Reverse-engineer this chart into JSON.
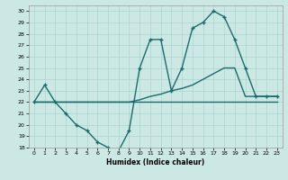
{
  "xlabel": "Humidex (Indice chaleur)",
  "bg_color": "#cce8e4",
  "grid_color": "#aad4d0",
  "line_color": "#1a6b6b",
  "xlim": [
    -0.5,
    23.5
  ],
  "ylim": [
    18,
    30.5
  ],
  "xticks": [
    0,
    1,
    2,
    3,
    4,
    5,
    6,
    7,
    8,
    9,
    10,
    11,
    12,
    13,
    14,
    15,
    16,
    17,
    18,
    19,
    20,
    21,
    22,
    23
  ],
  "yticks": [
    18,
    19,
    20,
    21,
    22,
    23,
    24,
    25,
    26,
    27,
    28,
    29,
    30
  ],
  "line1_x": [
    0,
    1,
    2,
    3,
    4,
    5,
    6,
    7,
    8,
    9,
    10,
    11,
    12,
    13,
    14,
    15,
    16,
    17,
    18,
    19,
    20,
    21,
    22,
    23
  ],
  "line1_y": [
    22,
    23.5,
    22,
    21,
    20,
    19.5,
    18.5,
    18,
    17.7,
    19.5,
    25,
    27.5,
    27.5,
    23,
    25,
    28.5,
    29,
    30,
    29.5,
    27.5,
    25,
    22.5,
    22.5,
    22.5
  ],
  "line2_x": [
    0,
    1,
    2,
    3,
    4,
    5,
    6,
    7,
    8,
    9,
    10,
    11,
    12,
    13,
    14,
    15,
    16,
    17,
    18,
    19,
    20,
    21,
    22,
    23
  ],
  "line2_y": [
    22,
    22,
    22,
    22,
    22,
    22,
    22,
    22,
    22,
    22,
    22.2,
    22.5,
    22.7,
    23,
    23.2,
    23.5,
    24,
    24.5,
    25,
    25,
    22.5,
    22.5,
    22.5,
    22.5
  ],
  "line3_x": [
    0,
    1,
    2,
    3,
    4,
    5,
    6,
    7,
    8,
    9,
    10,
    11,
    12,
    13,
    14,
    15,
    16,
    17,
    18,
    19,
    20,
    21,
    22,
    23
  ],
  "line3_y": [
    22,
    22,
    22,
    22,
    22,
    22,
    22,
    22,
    22,
    22,
    22,
    22,
    22,
    22,
    22,
    22,
    22,
    22,
    22,
    22,
    22,
    22,
    22,
    22
  ]
}
